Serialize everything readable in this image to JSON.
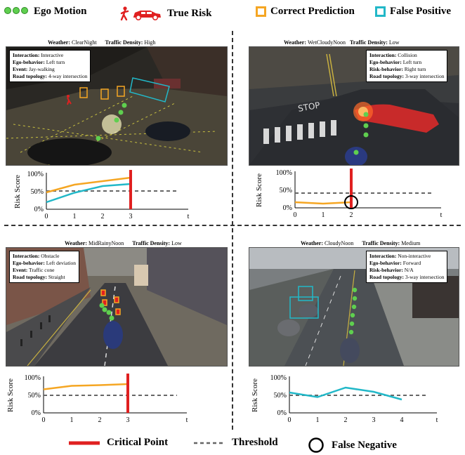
{
  "legend_top": {
    "ego_motion": "Ego Motion",
    "true_risk": "True Risk",
    "correct_prediction": "Correct Prediction",
    "false_positive": "False Positive",
    "colors": {
      "ego": "#5fcf4f",
      "risk": "#e02020",
      "correct": "#f5a623",
      "false_positive": "#22b8c8"
    }
  },
  "legend_bottom": {
    "critical_point": "Critical Point",
    "threshold": "Threshold",
    "false_negative": "False Negative"
  },
  "panels": [
    {
      "weather_label": "Weather:",
      "weather": "ClearNight",
      "density_label": "Traffic Density:",
      "density": "High",
      "info": [
        {
          "k": "Interaction:",
          "v": "Interactive"
        },
        {
          "k": "Ego-behavior:",
          "v": "Left turn"
        },
        {
          "k": "Event:",
          "v": "Jay-walking"
        },
        {
          "k": "Road topology:",
          "v": "4-way intersection"
        }
      ]
    },
    {
      "weather_label": "Weather:",
      "weather": "WetCloudyNoon",
      "density_label": "Traffic Density:",
      "density": "Low",
      "info": [
        {
          "k": "Interaction:",
          "v": "Collision"
        },
        {
          "k": "Ego-behavior:",
          "v": "Left turn"
        },
        {
          "k": "Risk-behavior:",
          "v": "Right turn"
        },
        {
          "k": "Road topology:",
          "v": "3-way intersection"
        }
      ]
    },
    {
      "weather_label": "Weather:",
      "weather": "MidRainyNoon",
      "density_label": "Traffic Density:",
      "density": "Low",
      "info": [
        {
          "k": "Interaction:",
          "v": "Obstacle"
        },
        {
          "k": "Ego-behavior:",
          "v": "Left deviation"
        },
        {
          "k": "Event:",
          "v": "Traffic cone"
        },
        {
          "k": "Road topology:",
          "v": "Straight"
        }
      ]
    },
    {
      "weather_label": "Weather:",
      "weather": "CloudyNoon",
      "density_label": "Traffic Density:",
      "density": "Medium",
      "info": [
        {
          "k": "Interaction:",
          "v": "Non-interactive"
        },
        {
          "k": "Ego-behavior:",
          "v": "Forward"
        },
        {
          "k": "Risk-behavior:",
          "v": "N/A"
        },
        {
          "k": "Road topology:",
          "v": "3-way intersection"
        }
      ]
    }
  ],
  "chart_data": [
    {
      "type": "line",
      "ylabel": "Risk Score",
      "xlabel": "t",
      "x_ticks": [
        "0",
        "1",
        "2",
        "3"
      ],
      "y_ticks": [
        "0%",
        "50%",
        "100%"
      ],
      "ylim": [
        0,
        100
      ],
      "threshold": 52,
      "critical_point": 3,
      "series": [
        {
          "color": "#f5a623",
          "x": [
            0,
            1,
            2,
            3
          ],
          "y": [
            48,
            70,
            80,
            90
          ]
        },
        {
          "color": "#22b8c8",
          "x": [
            0,
            1,
            2,
            3
          ],
          "y": [
            20,
            47,
            66,
            72
          ]
        }
      ]
    },
    {
      "type": "line",
      "ylabel": "Risk Score",
      "xlabel": "t",
      "x_ticks": [
        "0",
        "1",
        "2"
      ],
      "y_ticks": [
        "0%",
        "50%",
        "100%"
      ],
      "ylim": [
        0,
        100
      ],
      "threshold": 42,
      "critical_point": 2,
      "false_negative_at": 2,
      "series": [
        {
          "color": "#f5a623",
          "x": [
            0,
            1,
            2
          ],
          "y": [
            16,
            12,
            16
          ]
        }
      ]
    },
    {
      "type": "line",
      "ylabel": "Risk Score",
      "xlabel": "t",
      "x_ticks": [
        "0",
        "1",
        "2",
        "3"
      ],
      "y_ticks": [
        "0%",
        "50%",
        "100%"
      ],
      "ylim": [
        0,
        100
      ],
      "threshold": 50,
      "critical_point": 3,
      "series": [
        {
          "color": "#f5a623",
          "x": [
            0,
            1,
            2,
            3
          ],
          "y": [
            67,
            77,
            79,
            82
          ]
        }
      ]
    },
    {
      "type": "line",
      "ylabel": "Risk Score",
      "xlabel": "t",
      "x_ticks": [
        "0",
        "1",
        "2",
        "3",
        "4"
      ],
      "y_ticks": [
        "0%",
        "50%",
        "100%"
      ],
      "ylim": [
        0,
        100
      ],
      "threshold": 50,
      "series": [
        {
          "color": "#22b8c8",
          "x": [
            0,
            1,
            2,
            3,
            4
          ],
          "y": [
            58,
            45,
            72,
            60,
            38
          ]
        }
      ]
    }
  ]
}
